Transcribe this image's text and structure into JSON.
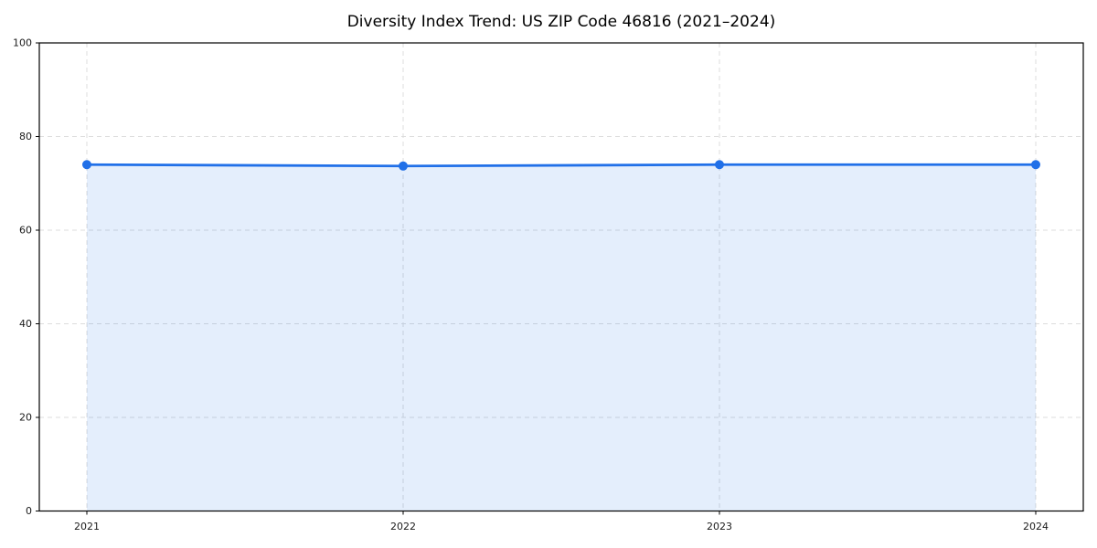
{
  "figure": {
    "background": "#ffffff"
  },
  "chart_data": {
    "type": "line",
    "title": "Diversity Index Trend: US ZIP Code 46816 (2021–2024)",
    "categories": [
      "2021",
      "2022",
      "2023",
      "2024"
    ],
    "series": [
      {
        "name": "Diversity Index",
        "values": [
          74,
          73.7,
          74,
          74
        ]
      }
    ],
    "xlabel": "",
    "ylabel": "",
    "ylim": [
      0,
      100
    ],
    "yticks": [
      0,
      20,
      40,
      60,
      80,
      100
    ],
    "grid": true,
    "grid_style": "dashed",
    "grid_color": "#dcdcdc",
    "legend": "none",
    "line_color": "#2170e8",
    "marker": "circle",
    "marker_color": "#2170e8",
    "fill_under_line": true,
    "fill_color": "#2170e8",
    "fill_opacity": 0.12,
    "frame_color": "#000000"
  }
}
